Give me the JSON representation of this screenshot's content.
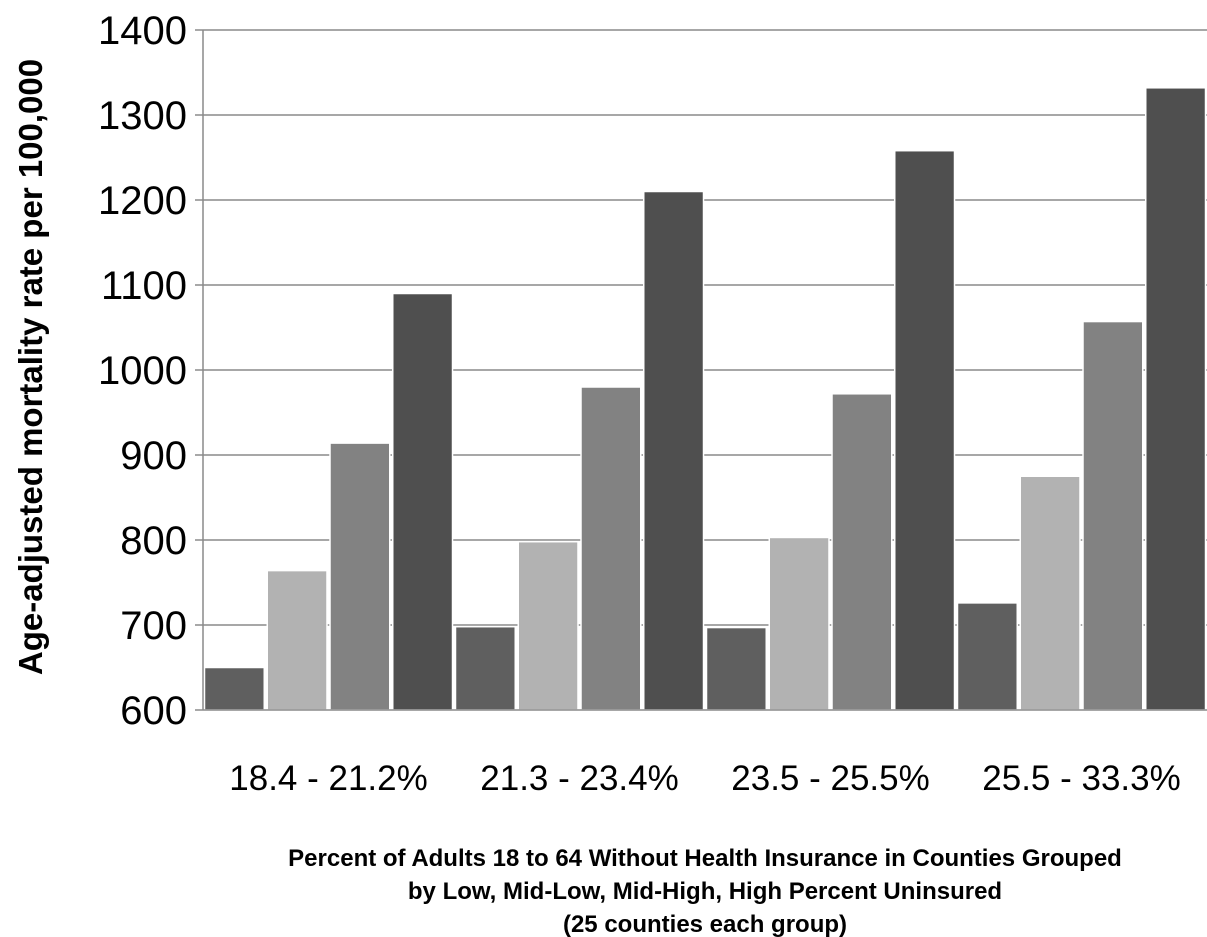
{
  "chart_data": {
    "type": "bar",
    "title": "",
    "ylabel": "Age-adjusted mortality rate per 100,000",
    "xlabel_lines": [
      "Percent  of Adults 18 to 64 Without Health Insurance  in Counties Grouped",
      "by Low, Mid-Low, Mid-High, High Percent Uninsured",
      "(25 counties each group)"
    ],
    "categories": [
      "18.4 - 21.2%",
      "21.3 - 23.4%",
      "23.5 - 25.5%",
      "25.5 - 33.3%"
    ],
    "series": [
      {
        "values": [
          650,
          698,
          697,
          726
        ]
      },
      {
        "values": [
          764,
          798,
          803,
          875
        ]
      },
      {
        "values": [
          914,
          980,
          972,
          1057
        ]
      },
      {
        "values": [
          1090,
          1210,
          1258,
          1332
        ]
      }
    ],
    "series_colors": [
      "#5f5f5f",
      "#b2b2b2",
      "#828282",
      "#4f4f4f"
    ],
    "ylim": [
      600,
      1400
    ],
    "yticks": [
      600,
      700,
      800,
      900,
      1000,
      1100,
      1200,
      1300,
      1400
    ],
    "grid": true,
    "legend": "none"
  }
}
